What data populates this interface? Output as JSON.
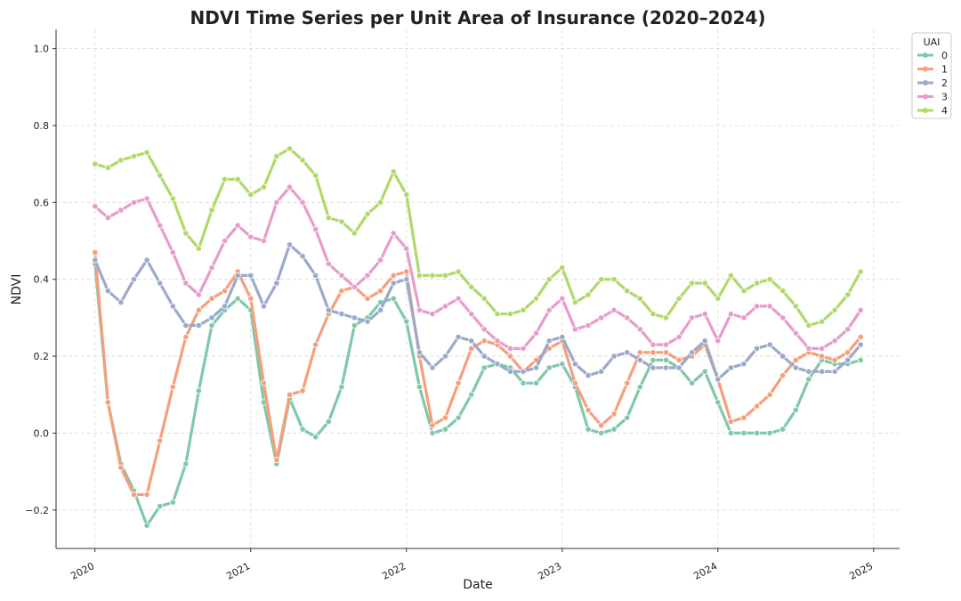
{
  "chart_data": {
    "type": "line",
    "title": "NDVI Time Series per Unit Area of Insurance (2020–2024)",
    "xlabel": "Date",
    "ylabel": "NDVI",
    "x_axis": "date",
    "x_start": "2020-01",
    "x_frequency": "monthly",
    "xlim": [
      "2019-10",
      "2025-03"
    ],
    "ylim": [
      -0.3,
      1.05
    ],
    "x_ticks": [
      "2020",
      "2021",
      "2022",
      "2023",
      "2024",
      "2025"
    ],
    "y_ticks": [
      -0.2,
      0.0,
      0.2,
      0.4,
      0.6,
      0.8,
      1.0
    ],
    "y_tick_labels": [
      "−0.2",
      "0.0",
      "0.2",
      "0.4",
      "0.6",
      "0.8",
      "1.0"
    ],
    "grid": true,
    "legend": {
      "title": "UAI",
      "placement": "top-right"
    },
    "series": [
      {
        "name": "0",
        "color": "#7fc8a9",
        "values": [
          0.44,
          0.08,
          -0.08,
          -0.15,
          -0.24,
          -0.19,
          -0.18,
          -0.08,
          0.11,
          0.28,
          0.32,
          0.35,
          0.32,
          0.08,
          -0.08,
          0.09,
          0.01,
          -0.01,
          0.03,
          0.12,
          0.28,
          0.3,
          0.34,
          0.35,
          0.29,
          0.12,
          0.0,
          0.01,
          0.04,
          0.1,
          0.17,
          0.18,
          0.17,
          0.13,
          0.13,
          0.17,
          0.18,
          0.12,
          0.01,
          0.0,
          0.01,
          0.04,
          0.12,
          0.19,
          0.19,
          0.17,
          0.13,
          0.16,
          0.08,
          0.0,
          0.0,
          0.0,
          0.0,
          0.01,
          0.06,
          0.14,
          0.19,
          0.18,
          0.18,
          0.19
        ]
      },
      {
        "name": "1",
        "color": "#f4a07c",
        "values": [
          0.47,
          0.08,
          -0.09,
          -0.16,
          -0.16,
          -0.02,
          0.12,
          0.25,
          0.32,
          0.35,
          0.37,
          0.42,
          0.35,
          0.13,
          -0.07,
          0.1,
          0.11,
          0.23,
          0.31,
          0.37,
          0.38,
          0.35,
          0.37,
          0.41,
          0.42,
          0.2,
          0.02,
          0.04,
          0.13,
          0.22,
          0.24,
          0.23,
          0.2,
          0.16,
          0.19,
          0.22,
          0.24,
          0.13,
          0.06,
          0.02,
          0.05,
          0.13,
          0.21,
          0.21,
          0.21,
          0.19,
          0.2,
          0.23,
          0.14,
          0.03,
          0.04,
          0.07,
          0.1,
          0.15,
          0.19,
          0.21,
          0.2,
          0.19,
          0.21,
          0.25
        ]
      },
      {
        "name": "2",
        "color": "#9aa9cc",
        "values": [
          0.45,
          0.37,
          0.34,
          0.4,
          0.45,
          0.39,
          0.33,
          0.28,
          0.28,
          0.3,
          0.33,
          0.41,
          0.41,
          0.33,
          0.39,
          0.49,
          0.46,
          0.41,
          0.32,
          0.31,
          0.3,
          0.29,
          0.32,
          0.39,
          0.4,
          0.21,
          0.17,
          0.2,
          0.25,
          0.24,
          0.2,
          0.18,
          0.16,
          0.16,
          0.17,
          0.24,
          0.25,
          0.18,
          0.15,
          0.16,
          0.2,
          0.21,
          0.19,
          0.17,
          0.17,
          0.17,
          0.21,
          0.24,
          0.14,
          0.17,
          0.18,
          0.22,
          0.23,
          0.2,
          0.17,
          0.16,
          0.16,
          0.16,
          0.19,
          0.23
        ]
      },
      {
        "name": "3",
        "color": "#e79ccb",
        "values": [
          0.59,
          0.56,
          0.58,
          0.6,
          0.61,
          0.54,
          0.47,
          0.39,
          0.36,
          0.43,
          0.5,
          0.54,
          0.51,
          0.5,
          0.6,
          0.64,
          0.6,
          0.53,
          0.44,
          0.41,
          0.38,
          0.41,
          0.45,
          0.52,
          0.48,
          0.32,
          0.31,
          0.33,
          0.35,
          0.31,
          0.27,
          0.24,
          0.22,
          0.22,
          0.26,
          0.32,
          0.35,
          0.27,
          0.28,
          0.3,
          0.32,
          0.3,
          0.27,
          0.23,
          0.23,
          0.25,
          0.3,
          0.31,
          0.24,
          0.31,
          0.3,
          0.33,
          0.33,
          0.3,
          0.26,
          0.22,
          0.22,
          0.24,
          0.27,
          0.32
        ]
      },
      {
        "name": "4",
        "color": "#b0d96a",
        "values": [
          0.7,
          0.69,
          0.71,
          0.72,
          0.73,
          0.67,
          0.61,
          0.52,
          0.48,
          0.58,
          0.66,
          0.66,
          0.62,
          0.64,
          0.72,
          0.74,
          0.71,
          0.67,
          0.56,
          0.55,
          0.52,
          0.57,
          0.6,
          0.68,
          0.62,
          0.41,
          0.41,
          0.41,
          0.42,
          0.38,
          0.35,
          0.31,
          0.31,
          0.32,
          0.35,
          0.4,
          0.43,
          0.34,
          0.36,
          0.4,
          0.4,
          0.37,
          0.35,
          0.31,
          0.3,
          0.35,
          0.39,
          0.39,
          0.35,
          0.41,
          0.37,
          0.39,
          0.4,
          0.37,
          0.33,
          0.28,
          0.29,
          0.32,
          0.36,
          0.42
        ]
      }
    ]
  }
}
